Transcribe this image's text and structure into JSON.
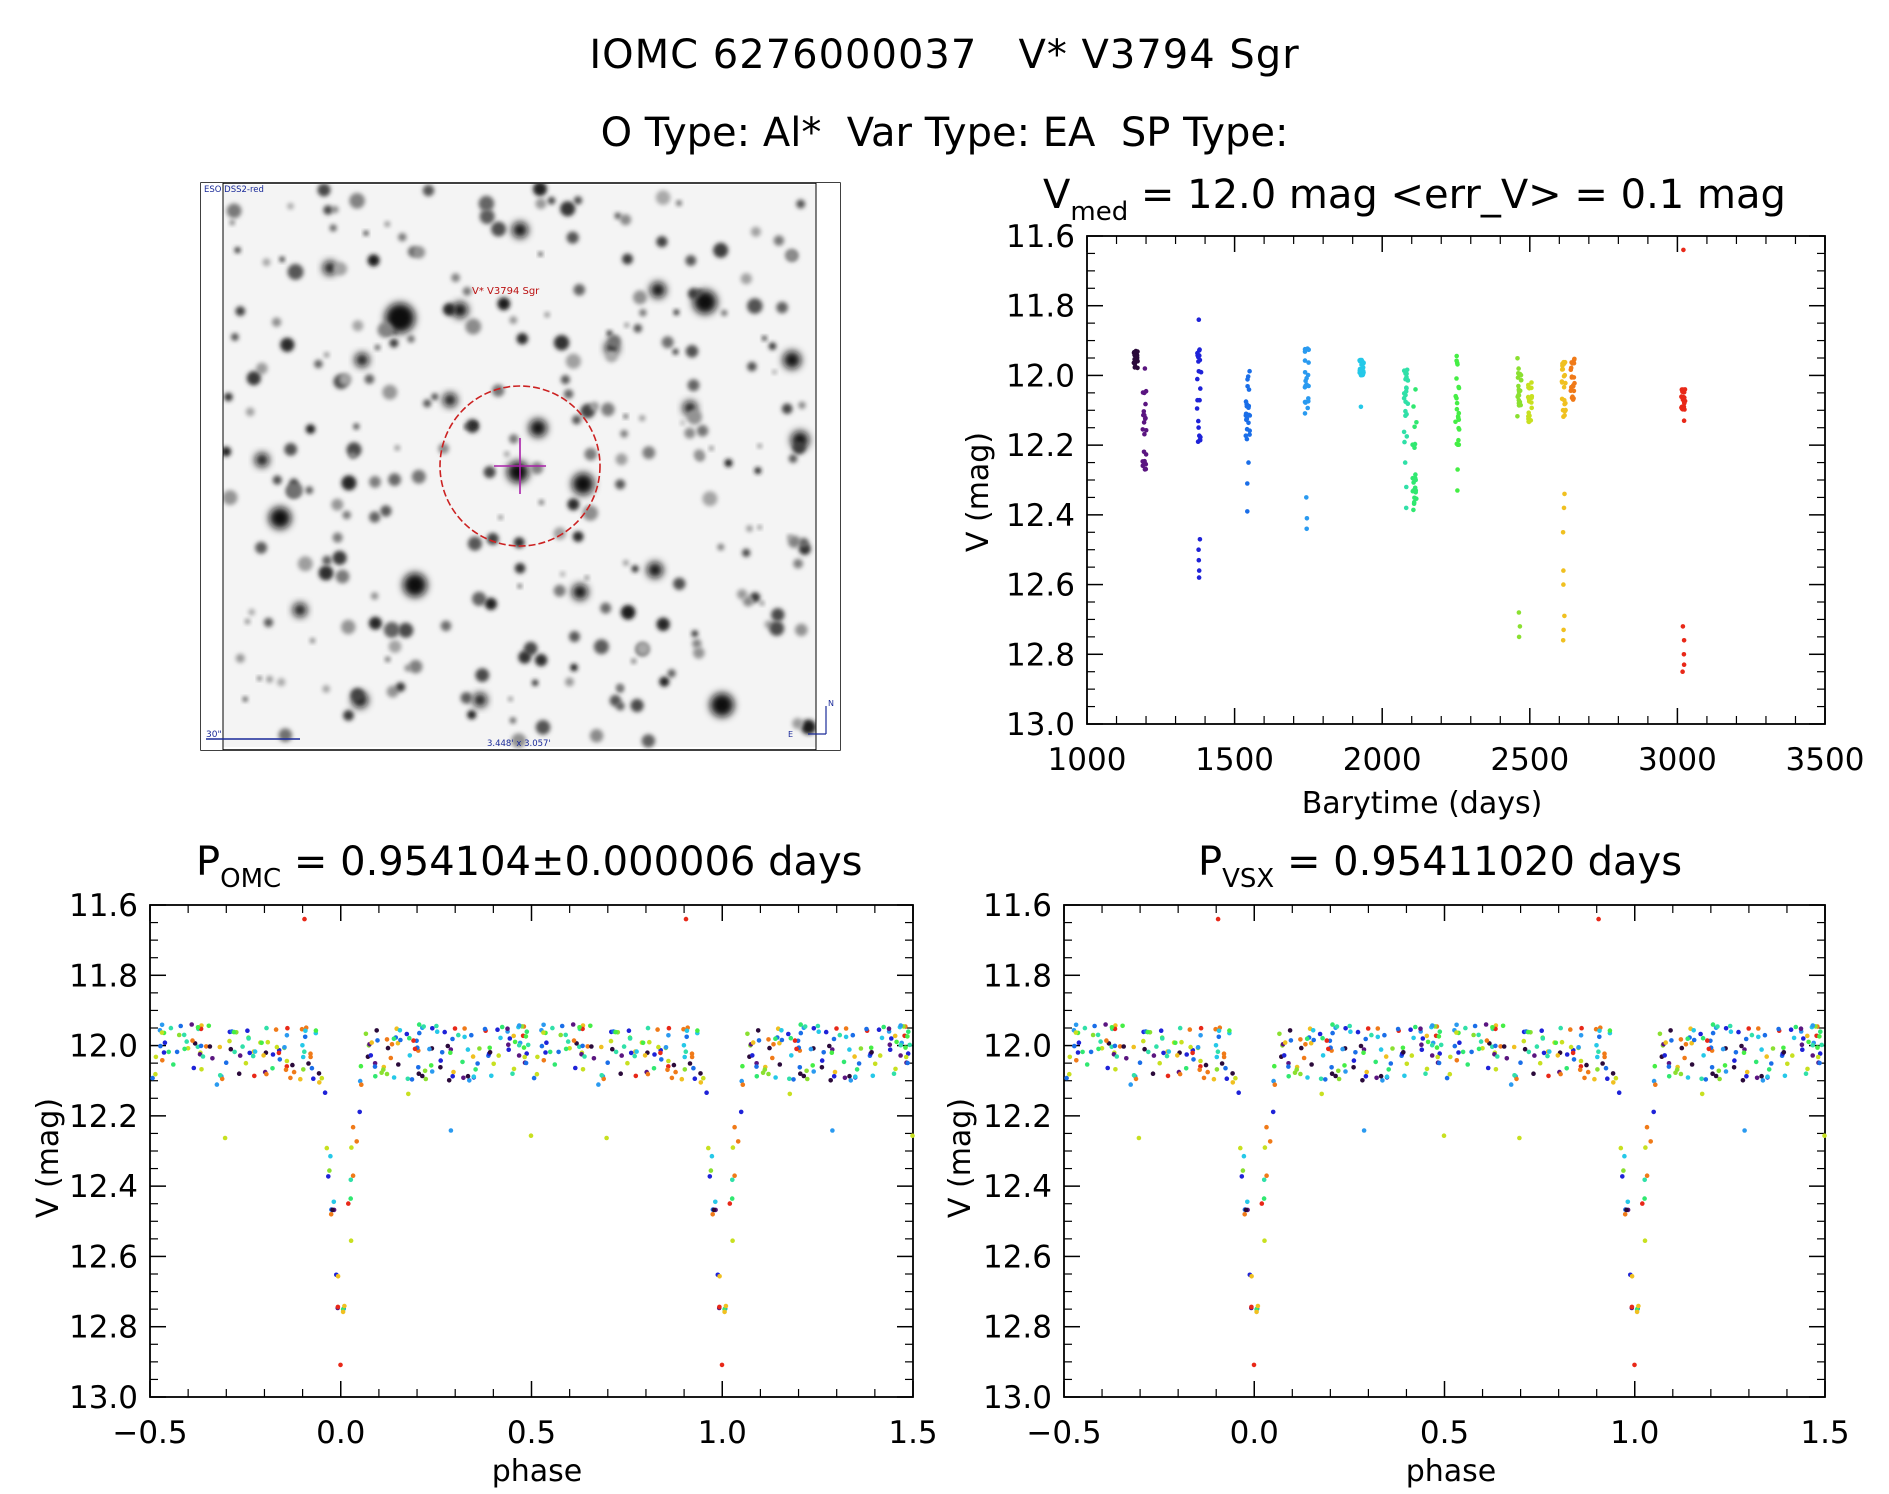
{
  "header": {
    "star_id": "IOMC 6276000037",
    "star_name": "V* V3794 Sgr",
    "otype": "O Type: Al*",
    "vartype": "Var Type: EA",
    "sptype": "SP Type:"
  },
  "image_panel": {
    "survey_label": "ESO DSS2-red",
    "target_label": "V* V3794 Sgr",
    "scale_label": "30\"",
    "fov_label": "3.448' x 3.057'",
    "compass_n": "N",
    "compass_e": "E"
  },
  "colors": {
    "axes": "#000000",
    "aperture": "#cc2222",
    "crosshair": "#aa22aa"
  },
  "chart_data": [
    {
      "type": "scatter",
      "id": "lightcurve",
      "title_prefix": "V",
      "title_sub": "med",
      "title_rest": " = 12.0 mag <err_V> = 0.1 mag",
      "xlabel": "Barytime (days)",
      "ylabel": "V (mag)",
      "xlim": [
        1000,
        3500
      ],
      "ylim": [
        13.0,
        11.6
      ],
      "y_inverted": true,
      "xticks": [
        1000,
        1500,
        2000,
        2500,
        3000,
        3500
      ],
      "yticks": [
        11.6,
        11.8,
        12.0,
        12.2,
        12.4,
        12.6,
        12.8,
        13.0
      ],
      "groups": [
        {
          "t": 1165,
          "color": "#2a0a3a",
          "range": [
            11.93,
            11.98
          ],
          "extra": []
        },
        {
          "t": 1195,
          "color": "#5a1580",
          "range": [
            12.0,
            12.28
          ],
          "extra": [
            11.98,
            12.05
          ]
        },
        {
          "t": 1380,
          "color": "#1e22d8",
          "range": [
            11.92,
            12.2
          ],
          "extra": [
            11.84,
            12.47,
            12.5,
            12.53,
            12.56,
            12.58
          ]
        },
        {
          "t": 1545,
          "color": "#1a6ee8",
          "range": [
            11.97,
            12.2
          ],
          "extra": [
            12.25,
            12.31,
            12.39
          ]
        },
        {
          "t": 1745,
          "color": "#2a9af0",
          "range": [
            11.92,
            12.12
          ],
          "extra": [
            12.35,
            12.41,
            12.44
          ]
        },
        {
          "t": 1930,
          "color": "#25c8e8",
          "range": [
            11.95,
            12.0
          ],
          "extra": [
            12.09
          ]
        },
        {
          "t": 2080,
          "color": "#30e0a8",
          "range": [
            11.97,
            12.2
          ],
          "extra": [
            12.25,
            12.32,
            12.38
          ]
        },
        {
          "t": 2110,
          "color": "#30e870",
          "range": [
            11.98,
            12.43
          ],
          "extra": []
        },
        {
          "t": 2255,
          "color": "#45ee45",
          "range": [
            11.94,
            12.2
          ],
          "extra": [
            12.27,
            12.33
          ]
        },
        {
          "t": 2465,
          "color": "#8ae030",
          "range": [
            11.95,
            12.12
          ],
          "extra": [
            12.68,
            12.72,
            12.75
          ]
        },
        {
          "t": 2500,
          "color": "#c8e020",
          "range": [
            12.02,
            12.15
          ],
          "extra": []
        },
        {
          "t": 2615,
          "color": "#f0c020",
          "range": [
            11.96,
            12.12
          ],
          "extra": [
            12.34,
            12.38,
            12.45,
            12.56,
            12.6,
            12.69,
            12.73,
            12.76
          ]
        },
        {
          "t": 2645,
          "color": "#f07a18",
          "range": [
            11.95,
            12.07
          ],
          "extra": []
        },
        {
          "t": 3020,
          "color": "#e82818",
          "range": [
            12.04,
            12.1
          ],
          "extra": [
            11.64,
            12.13,
            12.72,
            12.76,
            12.8,
            12.83,
            12.85
          ]
        }
      ]
    },
    {
      "type": "scatter",
      "id": "phase_omc",
      "title_prefix": "P",
      "title_sub": "OMC",
      "title_rest": " = 0.954104±0.000006 days",
      "xlabel": "phase",
      "ylabel": "V (mag)",
      "xlim": [
        -0.5,
        1.5
      ],
      "ylim": [
        13.0,
        11.6
      ],
      "y_inverted": true,
      "period_days": 0.954104,
      "xticks": [
        -0.5,
        0.0,
        0.5,
        1.0,
        1.5
      ],
      "xtick_labels": [
        "−0.5",
        "0.0",
        "0.5",
        "1.0",
        "1.5"
      ],
      "yticks": [
        11.6,
        11.8,
        12.0,
        12.2,
        12.4,
        12.6,
        12.8,
        13.0
      ],
      "primary_minimum": {
        "phase": 0.0,
        "mag": 12.85
      },
      "out_of_eclipse_mag": 12.02
    },
    {
      "type": "scatter",
      "id": "phase_vsx",
      "title_prefix": "P",
      "title_sub": "VSX",
      "title_rest": " = 0.95411020 days",
      "xlabel": "phase",
      "ylabel": "V (mag)",
      "xlim": [
        -0.5,
        1.5
      ],
      "ylim": [
        13.0,
        11.6
      ],
      "y_inverted": true,
      "period_days": 0.9541102,
      "xticks": [
        -0.5,
        0.0,
        0.5,
        1.0,
        1.5
      ],
      "xtick_labels": [
        "−0.5",
        "0.0",
        "0.5",
        "1.0",
        "1.5"
      ],
      "yticks": [
        11.6,
        11.8,
        12.0,
        12.2,
        12.4,
        12.6,
        12.8,
        13.0
      ],
      "primary_minimum": {
        "phase": 0.0,
        "mag": 12.85
      },
      "out_of_eclipse_mag": 12.02
    }
  ]
}
